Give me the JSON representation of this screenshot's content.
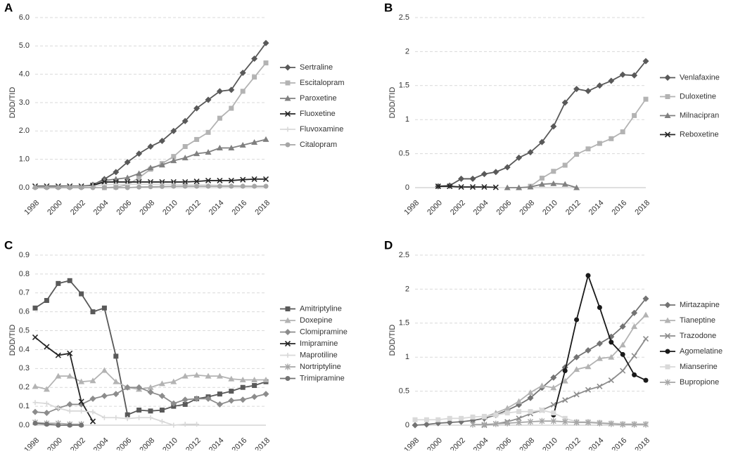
{
  "chart_data": [
    {
      "type": "line",
      "title": "A",
      "y_label": "DDD/TID",
      "categories": [
        "1998",
        null,
        "2000",
        null,
        "2002",
        null,
        "2004",
        null,
        "2006",
        null,
        "2008",
        null,
        "2010",
        null,
        "2012",
        null,
        "2014",
        null,
        "2016",
        null,
        "2018"
      ],
      "ylim": [
        0,
        6
      ],
      "yticks": [
        {
          "value": 0,
          "label": "0.0"
        },
        {
          "value": 1,
          "label": "1.0"
        },
        {
          "value": 2,
          "label": "2.0"
        },
        {
          "value": 3,
          "label": "3.0"
        },
        {
          "value": 4,
          "label": "4.0"
        },
        {
          "value": 5,
          "label": "5.0"
        },
        {
          "value": 6,
          "label": "6.0"
        }
      ],
      "grid": true,
      "series": [
        {
          "name": "Sertraline",
          "color": "#595959",
          "marker": "diamond",
          "values": [
            null,
            null,
            null,
            null,
            null,
            0.1,
            0.3,
            0.55,
            0.9,
            1.2,
            1.45,
            1.65,
            2.0,
            2.35,
            2.8,
            3.1,
            3.4,
            3.45,
            4.05,
            4.55,
            5.1
          ]
        },
        {
          "name": "Escitalopram",
          "color": "#b3b3b3",
          "marker": "square",
          "values": [
            null,
            null,
            null,
            null,
            null,
            null,
            0,
            0.02,
            0.1,
            0.35,
            0.65,
            0.85,
            1.1,
            1.45,
            1.7,
            1.95,
            2.45,
            2.8,
            3.4,
            3.9,
            4.4
          ]
        },
        {
          "name": "Paroxetine",
          "color": "#808080",
          "marker": "triangle",
          "values": [
            null,
            null,
            null,
            null,
            null,
            0.1,
            0.25,
            0.3,
            0.35,
            0.5,
            0.7,
            0.8,
            0.95,
            1.05,
            1.2,
            1.25,
            1.4,
            1.4,
            1.5,
            1.6,
            1.7
          ]
        },
        {
          "name": "Fluoxetine",
          "color": "#262626",
          "marker": "x",
          "values": [
            0.05,
            0.05,
            0.05,
            0.05,
            0.05,
            0.08,
            0.2,
            0.2,
            0.2,
            0.2,
            0.2,
            0.2,
            0.2,
            0.2,
            0.22,
            0.25,
            0.25,
            0.25,
            0.28,
            0.3,
            0.3
          ]
        },
        {
          "name": "Fluvoxamine",
          "color": "#d9d9d9",
          "marker": "plus",
          "values": [
            0.02,
            0.02,
            0.02,
            0.03,
            0.03,
            0.05,
            0.1,
            0.12,
            0.12,
            0.12,
            0.12,
            0.12,
            0.12,
            0.1,
            0.1,
            0.1,
            0.08,
            0.08,
            0.06,
            0.05,
            0.05
          ]
        },
        {
          "name": "Citalopram",
          "color": "#a6a6a6",
          "marker": "circle",
          "values": [
            0,
            0,
            0,
            0,
            0,
            0,
            0,
            0,
            0,
            0.02,
            0.03,
            0.04,
            0.05,
            0.05,
            0.05,
            0.05,
            0.05,
            0.05,
            0.05,
            0.05,
            0.05
          ]
        }
      ]
    },
    {
      "type": "line",
      "title": "B",
      "y_label": "DDD/TID",
      "categories": [
        "1998",
        null,
        "2000",
        null,
        "2002",
        null,
        "2004",
        null,
        "2006",
        null,
        "2008",
        null,
        "2010",
        null,
        "2012",
        null,
        "2014",
        null,
        "2016",
        null,
        "2018"
      ],
      "ylim": [
        0,
        2.5
      ],
      "yticks": [
        0,
        0.5,
        1,
        1.5,
        2,
        2.5
      ],
      "grid": true,
      "series": [
        {
          "name": "Venlafaxine",
          "color": "#595959",
          "marker": "diamond",
          "values": [
            null,
            null,
            0.02,
            0.03,
            0.13,
            0.13,
            0.2,
            0.23,
            0.3,
            0.44,
            0.52,
            0.67,
            0.9,
            1.25,
            1.45,
            1.42,
            1.5,
            1.57,
            1.66,
            1.65,
            1.86
          ]
        },
        {
          "name": "Duloxetine",
          "color": "#b3b3b3",
          "marker": "square",
          "values": [
            null,
            null,
            null,
            null,
            null,
            null,
            null,
            null,
            null,
            null,
            0.02,
            0.14,
            0.24,
            0.33,
            0.49,
            0.57,
            0.65,
            0.72,
            0.82,
            1.06,
            1.3
          ]
        },
        {
          "name": "Milnacipran",
          "color": "#808080",
          "marker": "triangle",
          "values": [
            null,
            null,
            null,
            null,
            null,
            null,
            null,
            null,
            0,
            0,
            0.01,
            0.05,
            0.06,
            0.05,
            0,
            null,
            null,
            null,
            null,
            null,
            null
          ]
        },
        {
          "name": "Reboxetine",
          "color": "#262626",
          "marker": "x",
          "values": [
            null,
            null,
            0.02,
            0.02,
            0.01,
            0.01,
            0.01,
            0.005,
            null,
            null,
            null,
            null,
            null,
            null,
            null,
            null,
            null,
            null,
            null,
            null,
            null
          ]
        }
      ]
    },
    {
      "type": "line",
      "title": "C",
      "y_label": "DDD/TID",
      "categories": [
        "1998",
        null,
        "2000",
        null,
        "2002",
        null,
        "2004",
        null,
        "2006",
        null,
        "2008",
        null,
        "2010",
        null,
        "2012",
        null,
        "2014",
        null,
        "2016",
        null,
        "2018"
      ],
      "ylim": [
        0,
        0.9
      ],
      "yticks": [
        {
          "value": 0,
          "label": "0.0"
        },
        0.1,
        0.2,
        0.3,
        0.4,
        0.5,
        0.6,
        0.7,
        0.8,
        0.9
      ],
      "grid": true,
      "series": [
        {
          "name": "Amitriptyline",
          "color": "#595959",
          "marker": "square",
          "values": [
            0.62,
            0.66,
            0.75,
            0.765,
            0.695,
            0.6,
            0.62,
            0.365,
            0.055,
            0.08,
            0.075,
            0.08,
            0.1,
            0.11,
            0.14,
            0.15,
            0.165,
            0.18,
            0.2,
            0.21,
            0.23
          ]
        },
        {
          "name": "Doxepine",
          "color": "#b3b3b3",
          "marker": "triangle",
          "values": [
            0.205,
            0.19,
            0.26,
            0.26,
            0.23,
            0.235,
            0.29,
            0.23,
            0.2,
            0.19,
            0.2,
            0.22,
            0.23,
            0.26,
            0.265,
            0.26,
            0.26,
            0.245,
            0.24,
            0.24,
            0.24
          ]
        },
        {
          "name": "Clomipramine",
          "color": "#8c8c8c",
          "marker": "diamond",
          "values": [
            0.07,
            0.065,
            0.09,
            0.11,
            0.11,
            0.14,
            0.155,
            0.165,
            0.2,
            0.2,
            0.175,
            0.155,
            0.115,
            0.135,
            0.14,
            0.14,
            0.11,
            0.13,
            0.135,
            0.15,
            0.165
          ]
        },
        {
          "name": "Imipramine",
          "color": "#262626",
          "marker": "x",
          "values": [
            0.465,
            0.415,
            0.37,
            0.38,
            0.125,
            0.02,
            null,
            null,
            null,
            null,
            null,
            null,
            null,
            null,
            null,
            null,
            null,
            null,
            null,
            null,
            null
          ]
        },
        {
          "name": "Maprotiline",
          "color": "#d9d9d9",
          "marker": "plus",
          "values": [
            0.12,
            0.115,
            0.09,
            0.075,
            0.075,
            0.07,
            0.04,
            0.04,
            0.035,
            0.04,
            0.04,
            0.02,
            0,
            0.005,
            0.005,
            null,
            null,
            null,
            null,
            null,
            null
          ]
        },
        {
          "name": "Nortriptyline",
          "color": "#a6a6a6",
          "marker": "star",
          "values": [
            0.015,
            0.01,
            0.01,
            0.005,
            0.005,
            null,
            null,
            null,
            null,
            null,
            null,
            null,
            null,
            null,
            null,
            null,
            null,
            null,
            null,
            null,
            null
          ]
        },
        {
          "name": "Trimipramine",
          "color": "#737373",
          "marker": "circle",
          "values": [
            0.01,
            0.005,
            0,
            0,
            0,
            null,
            null,
            null,
            null,
            null,
            null,
            null,
            null,
            null,
            null,
            null,
            null,
            null,
            null,
            null,
            null
          ]
        }
      ]
    },
    {
      "type": "line",
      "title": "D",
      "y_label": "DDD/TID",
      "categories": [
        "1998",
        null,
        "2000",
        null,
        "2002",
        null,
        "2004",
        null,
        "2006",
        null,
        "2008",
        null,
        "2010",
        null,
        "2012",
        null,
        "2014",
        null,
        "2016",
        null,
        "2018"
      ],
      "ylim": [
        0,
        2.5
      ],
      "yticks": [
        0,
        0.5,
        1,
        1.5,
        2,
        2.5
      ],
      "grid": true,
      "series": [
        {
          "name": "Mirtazapine",
          "color": "#737373",
          "marker": "diamond",
          "values": [
            0,
            0.01,
            0.03,
            0.04,
            0.05,
            0.07,
            0.1,
            0.15,
            0.22,
            0.3,
            0.4,
            0.55,
            0.7,
            0.85,
            1.0,
            1.1,
            1.2,
            1.3,
            1.45,
            1.65,
            1.86
          ]
        },
        {
          "name": "Tianeptine",
          "color": "#b3b3b3",
          "marker": "triangle",
          "values": [
            null,
            null,
            null,
            null,
            null,
            null,
            0.12,
            0.18,
            0.25,
            0.35,
            0.48,
            0.58,
            0.55,
            0.65,
            0.82,
            0.86,
            0.98,
            1.0,
            1.18,
            1.45,
            1.62
          ]
        },
        {
          "name": "Trazodone",
          "color": "#8c8c8c",
          "marker": "x",
          "values": [
            null,
            null,
            null,
            null,
            null,
            null,
            0,
            0.02,
            0.05,
            0.1,
            0.17,
            0.22,
            0.3,
            0.37,
            0.45,
            0.52,
            0.57,
            0.66,
            0.8,
            1.02,
            1.27
          ]
        },
        {
          "name": "Agomelatine",
          "color": "#1a1a1a",
          "marker": "circle",
          "values": [
            null,
            null,
            null,
            null,
            null,
            null,
            null,
            null,
            null,
            null,
            null,
            null,
            0.15,
            0.8,
            1.55,
            2.2,
            1.73,
            1.22,
            1.04,
            0.74,
            0.66
          ]
        },
        {
          "name": "Mianserine",
          "color": "#d9d9d9",
          "marker": "square",
          "values": [
            0.08,
            0.08,
            0.08,
            0.1,
            0.1,
            0.12,
            0.13,
            0.15,
            0.18,
            0.2,
            0.2,
            0.22,
            0.18,
            0.1,
            0.05,
            0.05,
            0.04,
            0.03,
            0.02,
            0.02,
            0.02
          ]
        },
        {
          "name": "Bupropione",
          "color": "#a6a6a6",
          "marker": "star",
          "values": [
            null,
            null,
            null,
            null,
            null,
            0.01,
            0.01,
            0.02,
            0.03,
            0.04,
            0.05,
            0.06,
            0.06,
            0.05,
            0.04,
            0.04,
            0.03,
            0.02,
            0.01,
            0.01,
            0.01
          ]
        }
      ]
    }
  ]
}
